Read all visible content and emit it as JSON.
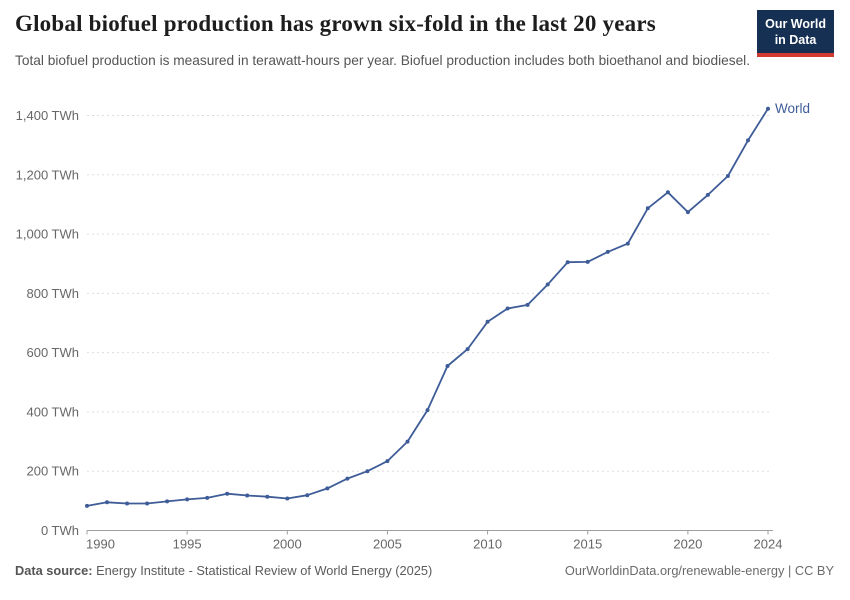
{
  "header": {
    "title": "Global biofuel production has grown six-fold in the last 20 years",
    "subtitle": "Total biofuel production is measured in terawatt-hours per year. Biofuel production includes both bioethanol and biodiesel.",
    "logo": {
      "line1": "Our World",
      "line2": "in Data"
    }
  },
  "chart_data": {
    "type": "line",
    "title": "Global biofuel production has grown six-fold in the last 20 years",
    "unit": "TWh",
    "x": [
      1990,
      1991,
      1992,
      1993,
      1994,
      1995,
      1996,
      1997,
      1998,
      1999,
      2000,
      2001,
      2002,
      2003,
      2004,
      2005,
      2006,
      2007,
      2008,
      2009,
      2010,
      2011,
      2012,
      2013,
      2014,
      2015,
      2016,
      2017,
      2018,
      2019,
      2020,
      2021,
      2022,
      2023,
      2024
    ],
    "series": [
      {
        "name": "World",
        "color": "#3e5c97",
        "values": [
          83,
          95,
          91,
          91,
          98,
          105,
          110,
          124,
          118,
          114,
          108,
          119,
          142,
          175,
          200,
          234,
          300,
          406,
          555,
          612,
          704,
          749,
          761,
          830,
          905,
          906,
          940,
          968,
          1087,
          1141,
          1074,
          1132,
          1196,
          1316,
          1423
        ]
      }
    ],
    "ylim": [
      0,
      1400
    ],
    "yticks": [
      0,
      200,
      400,
      600,
      800,
      1000,
      1200,
      1400
    ],
    "xticks": [
      1990,
      1995,
      2000,
      2005,
      2010,
      2015,
      2020,
      2024
    ],
    "grid": "horizontal-dashed",
    "legend_position": "end-of-line-label"
  },
  "footer": {
    "datasource_label": "Data source:",
    "datasource": "Energy Institute - Statistical Review of World Energy (2025)",
    "link": "OurWorldinData.org/renewable-energy",
    "separator": "|",
    "license": "CC BY"
  },
  "colors": {
    "line": "#3e5c97",
    "grid": "#dddddd",
    "axis": "#9e9e9e",
    "tick_label": "#676767",
    "title": "#1d1d1d",
    "subtitle": "#555555",
    "logo_bg": "#163054",
    "logo_bar": "#cf3a31"
  }
}
